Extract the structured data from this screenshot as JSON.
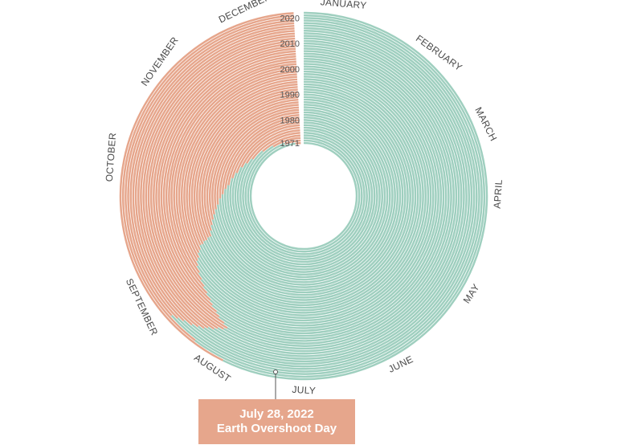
{
  "chart_data": {
    "type": "radial-area",
    "months": [
      "JANUARY",
      "FEBRUARY",
      "MARCH",
      "APRIL",
      "MAY",
      "JUNE",
      "JULY",
      "AUGUST",
      "SEPTEMBER",
      "OCTOBER",
      "NOVEMBER",
      "DECEMBER"
    ],
    "year_ticks": [
      "1971",
      "1980",
      "1990",
      "2000",
      "2010",
      "2020"
    ],
    "x": [
      1971,
      1975,
      1980,
      1985,
      1990,
      1995,
      2000,
      2005,
      2010,
      2015,
      2020,
      2022
    ],
    "overshoot_day_of_year": [
      356,
      310,
      282,
      265,
      250,
      248,
      240,
      225,
      213,
      220,
      231,
      209
    ],
    "series": [
      {
        "values_until_overshoot": [
          356,
          310,
          282,
          265,
          250,
          248,
          240,
          225,
          213,
          220,
          231,
          209
        ]
      },
      {
        "values_after_overshoot": [
          9,
          55,
          84,
          100,
          115,
          117,
          126,
          140,
          152,
          145,
          134,
          156
        ]
      }
    ],
    "year_range": [
      1971,
      2022
    ],
    "colors": {
      "within_budget": "#9fcfbf",
      "overshoot": "#e6a68c",
      "separator": "#ffffff"
    }
  },
  "callout": {
    "date": "July 28, 2022",
    "label": "Earth Overshoot Day"
  }
}
